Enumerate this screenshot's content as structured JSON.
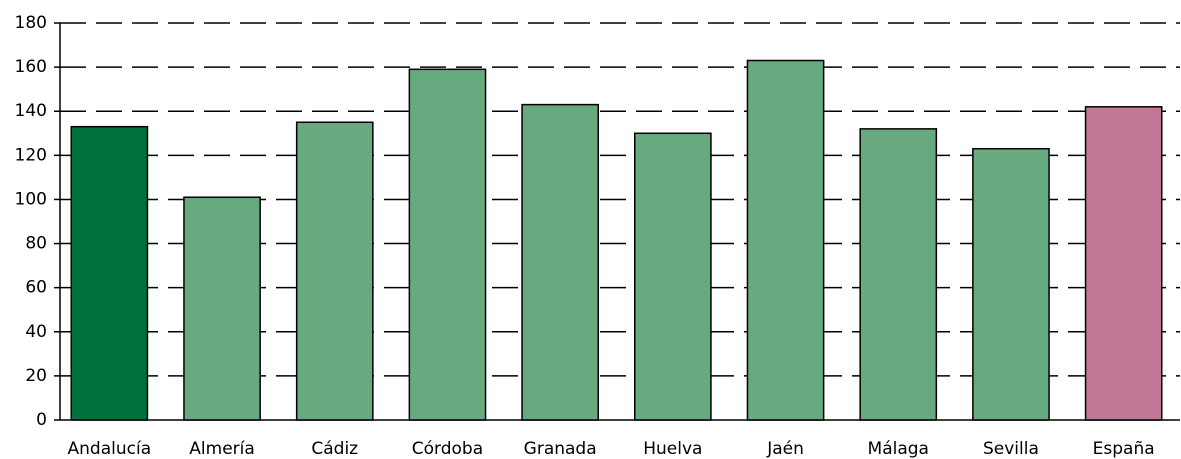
{
  "chart_data": {
    "type": "bar",
    "categories": [
      "Andalucía",
      "Almería",
      "Cádiz",
      "Córdoba",
      "Granada",
      "Huelva",
      "Jaén",
      "Málaga",
      "Sevilla",
      "España"
    ],
    "values": [
      133,
      101,
      135,
      159,
      143,
      130,
      163,
      132,
      123,
      142
    ],
    "colors": [
      "#00703c",
      "#68aa80",
      "#68aa80",
      "#68aa80",
      "#68aa80",
      "#68aa80",
      "#68aa80",
      "#68aa80",
      "#68aa80",
      "#c07896"
    ],
    "ylim": [
      0,
      180
    ],
    "yticks": [
      0,
      20,
      40,
      60,
      80,
      100,
      120,
      140,
      160,
      180
    ],
    "grid": true
  }
}
